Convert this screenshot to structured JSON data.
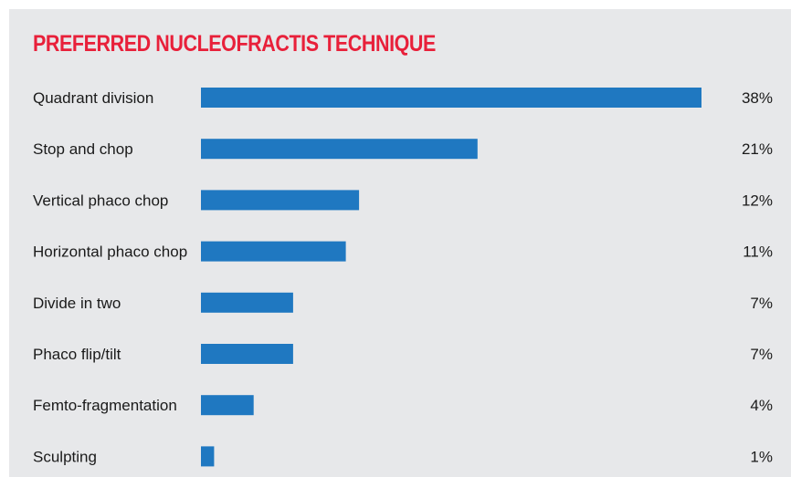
{
  "chart_data": {
    "type": "bar",
    "orientation": "horizontal",
    "title": "PREFERRED NUCLEOFRACTIS TECHNIQUE",
    "categories": [
      "Quadrant division",
      "Stop and chop",
      "Vertical phaco chop",
      "Horizontal phaco chop",
      "Divide in two",
      "Phaco flip/tilt",
      "Femto-fragmentation",
      "Sculpting"
    ],
    "values": [
      38,
      21,
      12,
      11,
      7,
      7,
      4,
      1
    ],
    "value_labels": [
      "38%",
      "21%",
      "12%",
      "11%",
      "7%",
      "7%",
      "4%",
      "1%"
    ],
    "unit": "%",
    "xlim": [
      0,
      38
    ],
    "bar_color": "#1f78c1",
    "title_color": "#e8203a",
    "background_color": "#e7e8ea",
    "grid": false,
    "legend": "none"
  }
}
